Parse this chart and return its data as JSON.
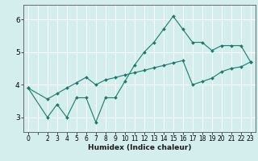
{
  "xlabel": "Humidex (Indice chaleur)",
  "ylabel": "",
  "bg_color": "#d4eeee",
  "line_color": "#1a7a6a",
  "grid_color": "#ffffff",
  "xlim": [
    -0.5,
    23.5
  ],
  "ylim": [
    2.55,
    6.45
  ],
  "xticks": [
    0,
    1,
    2,
    3,
    4,
    5,
    6,
    7,
    8,
    9,
    10,
    11,
    12,
    13,
    14,
    15,
    16,
    17,
    18,
    19,
    20,
    21,
    22,
    23
  ],
  "xtick_labels": [
    "0",
    "",
    "2",
    "3",
    "4",
    "5",
    "6",
    "7",
    "8",
    "9",
    "10",
    "11",
    "12",
    "13",
    "14",
    "15",
    "16",
    "17",
    "18",
    "19",
    "20",
    "21",
    "22",
    "23"
  ],
  "yticks": [
    3,
    4,
    5,
    6
  ],
  "curve1_x": [
    0,
    2,
    3,
    4,
    5,
    6,
    7,
    8,
    9,
    10,
    11,
    12,
    13,
    14,
    15,
    16,
    17,
    18,
    19,
    20,
    21,
    22,
    23
  ],
  "curve1_y": [
    3.9,
    3.0,
    3.4,
    3.0,
    3.6,
    3.6,
    2.85,
    3.6,
    3.6,
    4.1,
    4.6,
    5.0,
    5.3,
    5.7,
    6.1,
    5.7,
    5.3,
    5.3,
    5.05,
    5.2,
    5.2,
    5.2,
    4.7
  ],
  "curve2_x": [
    0,
    2,
    3,
    4,
    5,
    6,
    7,
    8,
    9,
    10,
    11,
    12,
    13,
    14,
    15,
    16,
    17,
    18,
    19,
    20,
    21,
    22,
    23
  ],
  "curve2_y": [
    3.9,
    3.56,
    3.73,
    3.9,
    4.06,
    4.23,
    4.0,
    4.15,
    4.22,
    4.3,
    4.37,
    4.44,
    4.52,
    4.59,
    4.67,
    4.74,
    4.0,
    4.1,
    4.2,
    4.4,
    4.5,
    4.55,
    4.7
  ]
}
